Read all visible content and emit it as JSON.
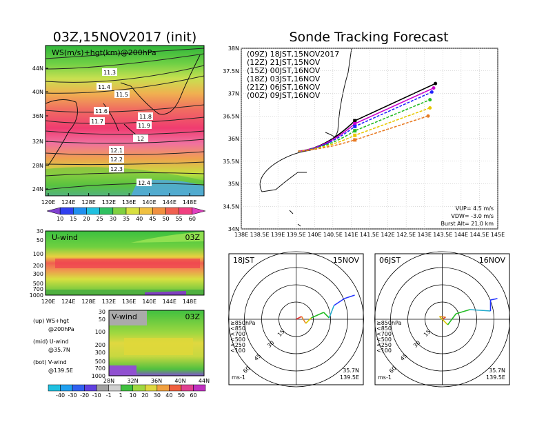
{
  "left_title": "03Z,15NOV2017 (init)",
  "right_title": "Sonde Tracking Forecast",
  "map1": {
    "label": "WS(m/s)+hgt(km)@200hPa",
    "lat_ticks": [
      "44N",
      "40N",
      "36N",
      "32N",
      "28N",
      "24N"
    ],
    "lon_ticks": [
      "120E",
      "124E",
      "128E",
      "132E",
      "136E",
      "140E",
      "144E",
      "148E"
    ],
    "contours": [
      "11.3",
      "11.4",
      "11.5",
      "11.6",
      "11.7",
      "11.8",
      "11.9",
      "12",
      "12.1",
      "12.2",
      "12.3",
      "12.4"
    ],
    "colorbar": [
      "10",
      "15",
      "20",
      "25",
      "30",
      "35",
      "40",
      "45",
      "50",
      "55",
      "60"
    ]
  },
  "uwind": {
    "label": "U-wind",
    "time": "03Z",
    "p_ticks": [
      "30",
      "50",
      "100",
      "200",
      "300",
      "500",
      "700",
      "1000"
    ],
    "lon_ticks": [
      "120E",
      "124E",
      "128E",
      "132E",
      "136E",
      "140E",
      "144E",
      "148E"
    ]
  },
  "vwind": {
    "label": "V-wind",
    "time": "03Z",
    "p_ticks": [
      "30",
      "50",
      "100",
      "200",
      "300",
      "500",
      "700",
      "1000"
    ],
    "lat_ticks": [
      "28N",
      "32N",
      "36N",
      "40N",
      "44N"
    ],
    "colorbar": [
      "-40",
      "-30",
      "-20",
      "-10",
      "-1",
      "1",
      "10",
      "20",
      "30",
      "40",
      "50",
      "60"
    ]
  },
  "notes": [
    {
      "a": "(up) WS+hgt",
      "b": "@200hPa"
    },
    {
      "a": "(mid) U-wind",
      "b": "@35.7N"
    },
    {
      "a": "(bot) V-wind",
      "b": "@139.5E"
    }
  ],
  "chart_data": {
    "type": "line",
    "title": "Sonde Tracking Forecast",
    "xlim": [
      138,
      145
    ],
    "ylim": [
      34,
      38
    ],
    "x_ticks": [
      "138E",
      "138.5E",
      "139E",
      "139.5E",
      "140E",
      "140.5E",
      "141E",
      "141.5E",
      "142E",
      "142.5E",
      "143E",
      "143.5E",
      "144E",
      "144.5E",
      "145E"
    ],
    "y_ticks": [
      "34N",
      "34.5N",
      "35N",
      "35.5N",
      "36N",
      "36.5N",
      "37N",
      "37.5N",
      "38N"
    ],
    "start": [
      139.55,
      35.72
    ],
    "series": [
      {
        "name": "(09Z) 18JST,15NOV2017",
        "color": "#000000",
        "end": [
          143.3,
          37.22
        ]
      },
      {
        "name": "(12Z) 21JST,15NOV",
        "color": "#cc00cc",
        "end": [
          143.25,
          37.12
        ]
      },
      {
        "name": "(15Z) 00JST,16NOV",
        "color": "#2222ff",
        "end": [
          143.2,
          37.03
        ]
      },
      {
        "name": "(18Z) 03JST,16NOV",
        "color": "#22bb22",
        "end": [
          143.15,
          36.86
        ]
      },
      {
        "name": "(21Z) 06JST,16NOV",
        "color": "#e8c800",
        "end": [
          143.15,
          36.68
        ]
      },
      {
        "name": "(00Z) 09JST,16NOV",
        "color": "#e87a22",
        "end": [
          143.1,
          36.5
        ]
      }
    ],
    "params": [
      "VUP= 4.5 m/s",
      "VDW= -3.0 m/s",
      "Burst Alt= 21.0 km"
    ]
  },
  "hodos": [
    {
      "jst": "18JST",
      "date": "15NOV",
      "loc1": "35.7N",
      "loc2": "139.5E",
      "unit": "ms-1",
      "rings": [
        "15",
        "30",
        "45",
        "60"
      ]
    },
    {
      "jst": "06JST",
      "date": "16NOV",
      "loc1": "35.7N",
      "loc2": "139.5E",
      "unit": "ms-1",
      "rings": [
        "15",
        "30",
        "45",
        "60"
      ]
    }
  ],
  "hodo_legend": [
    {
      "t": "≥850hPa",
      "c": "#e83030"
    },
    {
      "t": "<850",
      "c": "#e88020"
    },
    {
      "t": "<700",
      "c": "#d8c800"
    },
    {
      "t": "<500",
      "c": "#22bb22"
    },
    {
      "t": "<250",
      "c": "#22aacc"
    },
    {
      "t": "<100",
      "c": "#2233ff"
    }
  ]
}
